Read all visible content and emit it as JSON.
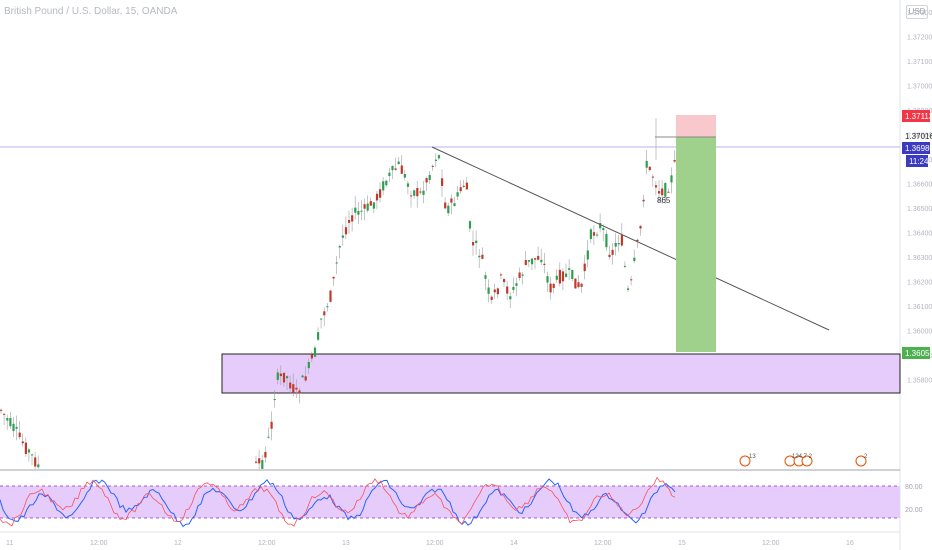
{
  "header": {
    "symbol_title": "British Pound / U.S. Dollar, 15, OANDA",
    "currency": "USD"
  },
  "price_axis": {
    "ticks": [
      "1.37300",
      "1.37200",
      "1.37100",
      "1.37000",
      "1.36900",
      "1.36800",
      "1.36700",
      "1.36600",
      "1.36500",
      "1.36400",
      "1.36300",
      "1.36200",
      "1.36100",
      "1.36000",
      "1.35900",
      "1.35800"
    ],
    "labels": {
      "target": {
        "text": "1.37113",
        "color": "#f23645"
      },
      "high": {
        "text": "1.37016",
        "color": "#ffffff"
      },
      "current": {
        "text": "1.36980",
        "color": "#3b3bbf"
      },
      "countdown": {
        "text": "11:24",
        "color": "#3b3bbf"
      },
      "stop": {
        "text": "1.36056",
        "color": "#4caf50"
      }
    }
  },
  "time_axis": {
    "ticks": [
      "11",
      "12:00",
      "12",
      "12:00",
      "13",
      "12:00",
      "14",
      "12:00",
      "15",
      "12:00",
      "16"
    ]
  },
  "annotations": {
    "point_label": "865",
    "event_1": "13",
    "event_2": "124 7 2",
    "event_3": "2"
  },
  "stoch_axis": {
    "upper": "80.00",
    "lower": "20.00"
  },
  "chart_data": {
    "type": "candlestick",
    "y_range": [
      1.3575,
      1.3735
    ],
    "support_zone": [
      1.3588,
      1.3604
    ],
    "trendline": [
      {
        "t": 0.47,
        "price": 1.3698
      },
      {
        "t": 0.89,
        "price": 1.362
      }
    ],
    "long_position": {
      "entry": 1.3698,
      "target": 1.37113,
      "stop": 1.36056
    },
    "stoch_levels": [
      20,
      80
    ],
    "colors": {
      "up": "#26a69a",
      "down": "#d63b3b",
      "zone": "#e6ccfb",
      "profit": "#9fd18c",
      "loss": "#f8c8cc"
    }
  }
}
